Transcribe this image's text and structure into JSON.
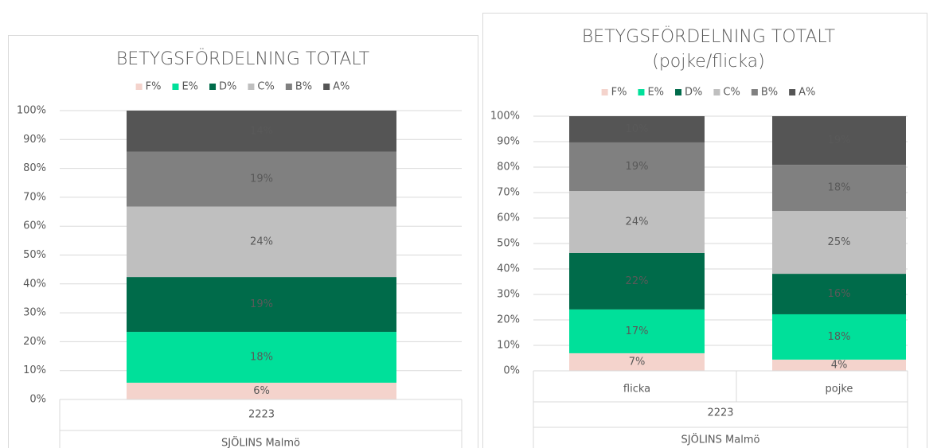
{
  "chart_data": [
    {
      "type": "stacked_bar",
      "title": "BETYGSFÖRDELNING TOTALT",
      "categories": [
        "2223"
      ],
      "group_labels": [
        "SJÖLINS Malmö"
      ],
      "ylim": [
        0,
        100
      ],
      "yticks": [
        {
          "value": 0,
          "label": "0%"
        },
        {
          "value": 10,
          "label": "10%"
        },
        {
          "value": 20,
          "label": "20%"
        },
        {
          "value": 30,
          "label": "30%"
        },
        {
          "value": 40,
          "label": "40%"
        },
        {
          "value": 50,
          "label": "50%"
        },
        {
          "value": 60,
          "label": "60%"
        },
        {
          "value": 70,
          "label": "70%"
        },
        {
          "value": 80,
          "label": "80%"
        },
        {
          "value": 90,
          "label": "90%"
        },
        {
          "value": 100,
          "label": "100%"
        }
      ],
      "grid": true,
      "legend": "top",
      "series": [
        {
          "name": "F%",
          "color": "#f4d3cc",
          "values": [
            5.8
          ],
          "value_labels": [
            "6%"
          ]
        },
        {
          "name": "E%",
          "color": "#00e09a",
          "values": [
            17.6
          ],
          "value_labels": [
            "18%"
          ]
        },
        {
          "name": "D%",
          "color": "#006b4a",
          "values": [
            19.0
          ],
          "value_labels": [
            "19%"
          ]
        },
        {
          "name": "C%",
          "color": "#bfbfbf",
          "values": [
            24.4
          ],
          "value_labels": [
            "24%"
          ]
        },
        {
          "name": "B%",
          "color": "#808080",
          "values": [
            19.0
          ],
          "value_labels": [
            "19%"
          ]
        },
        {
          "name": "A%",
          "color": "#555555",
          "values": [
            14.2
          ],
          "value_labels": [
            "14%"
          ]
        }
      ]
    },
    {
      "type": "stacked_bar",
      "title": "BETYGSFÖRDELNING TOTALT",
      "subtitle": "(pojke/flicka)",
      "categories": [
        "flicka",
        "pojke"
      ],
      "group_labels": [
        "2223",
        "SJÖLINS Malmö"
      ],
      "ylim": [
        0,
        100
      ],
      "yticks": [
        {
          "value": 0,
          "label": "0%"
        },
        {
          "value": 10,
          "label": "10%"
        },
        {
          "value": 20,
          "label": "20%"
        },
        {
          "value": 30,
          "label": "30%"
        },
        {
          "value": 40,
          "label": "40%"
        },
        {
          "value": 50,
          "label": "50%"
        },
        {
          "value": 60,
          "label": "60%"
        },
        {
          "value": 70,
          "label": "70%"
        },
        {
          "value": 80,
          "label": "80%"
        },
        {
          "value": 90,
          "label": "90%"
        },
        {
          "value": 100,
          "label": "100%"
        }
      ],
      "grid": true,
      "legend": "top",
      "series": [
        {
          "name": "F%",
          "color": "#f4d3cc",
          "values": [
            6.9,
            4.4
          ],
          "value_labels": [
            "7%",
            "4%"
          ]
        },
        {
          "name": "E%",
          "color": "#00e09a",
          "values": [
            17.2,
            17.8
          ],
          "value_labels": [
            "17%",
            "18%"
          ]
        },
        {
          "name": "D%",
          "color": "#006b4a",
          "values": [
            22.2,
            15.9
          ],
          "value_labels": [
            "22%",
            "16%"
          ]
        },
        {
          "name": "C%",
          "color": "#bfbfbf",
          "values": [
            24.3,
            24.7
          ],
          "value_labels": [
            "24%",
            "25%"
          ]
        },
        {
          "name": "B%",
          "color": "#808080",
          "values": [
            19.1,
            18.1
          ],
          "value_labels": [
            "19%",
            "18%"
          ]
        },
        {
          "name": "A%",
          "color": "#555555",
          "values": [
            10.3,
            19.1
          ],
          "value_labels": [
            "10%",
            "19%"
          ]
        }
      ]
    }
  ]
}
